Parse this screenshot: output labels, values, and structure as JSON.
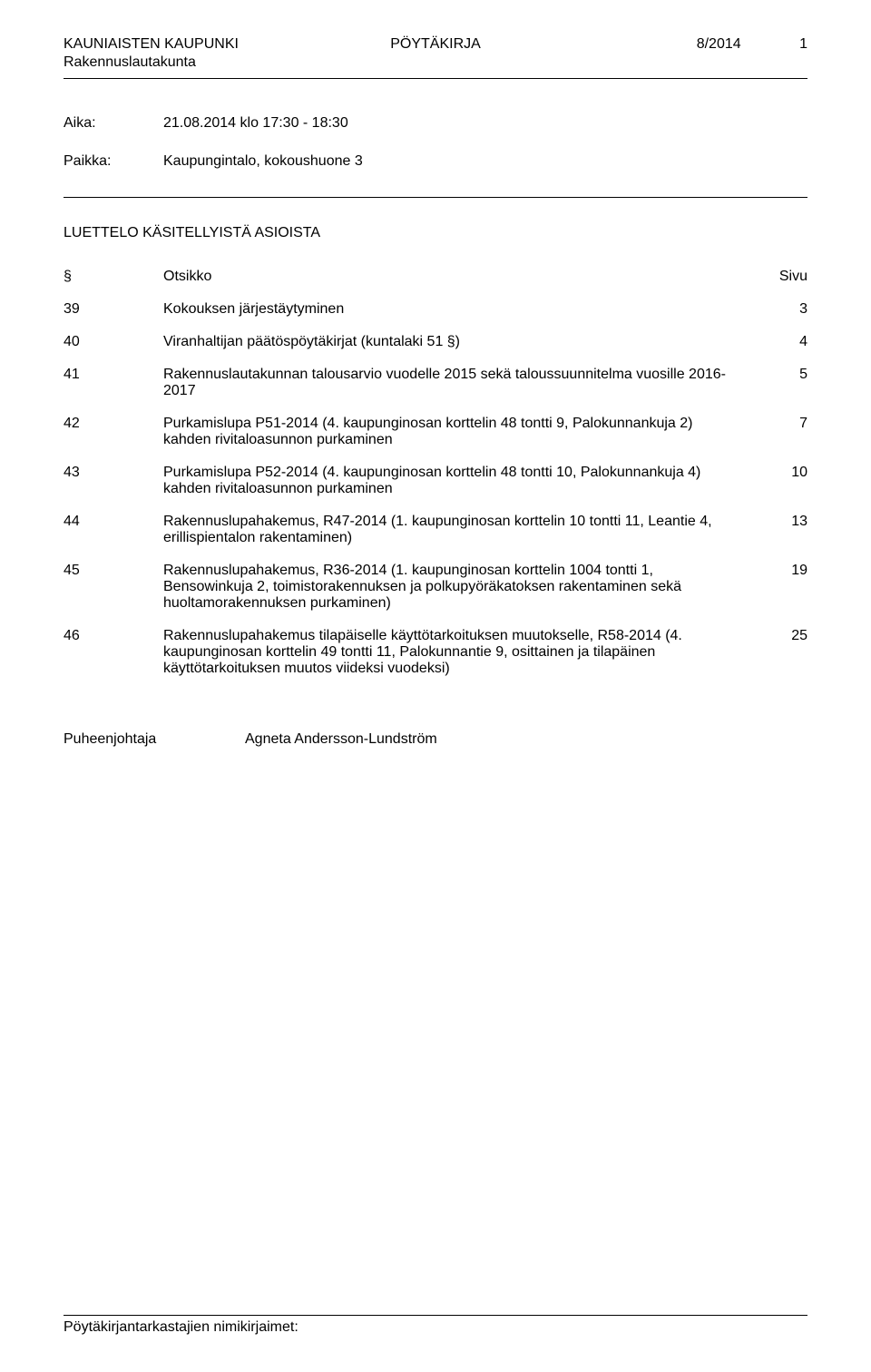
{
  "header": {
    "org": "KAUNIAISTEN KAUPUNKI",
    "subtitle": "Rakennuslautakunta",
    "docType": "PÖYTÄKIRJA",
    "issue": "8/2014",
    "pageNum": "1"
  },
  "meta": {
    "aika_label": "Aika:",
    "aika_value": "21.08.2014 klo 17:30 - 18:30",
    "paikka_label": "Paikka:",
    "paikka_value": "Kaupungintalo, kokoushuone 3"
  },
  "listTitle": "LUETTELO KÄSITELLYISTÄ ASIOISTA",
  "tableHeader": {
    "section": "§",
    "title": "Otsikko",
    "page": "Sivu"
  },
  "agenda": [
    {
      "num": "39",
      "title": "Kokouksen järjestäytyminen",
      "page": "3"
    },
    {
      "num": "40",
      "title": "Viranhaltijan päätöspöytäkirjat (kuntalaki 51 §)",
      "page": "4"
    },
    {
      "num": "41",
      "title": "Rakennuslautakunnan talousarvio vuodelle 2015 sekä taloussuunnitelma vuosille 2016-2017",
      "page": "5"
    },
    {
      "num": "42",
      "title": "Purkamislupa P51-2014 (4. kaupunginosan korttelin 48 tontti 9, Palokunnankuja 2) kahden rivitaloasunnon purkaminen",
      "page": "7"
    },
    {
      "num": "43",
      "title": "Purkamislupa P52-2014 (4. kaupunginosan korttelin 48 tontti 10, Palokunnankuja 4) kahden rivitaloasunnon purkaminen",
      "page": "10"
    },
    {
      "num": "44",
      "title": "Rakennuslupahakemus, R47-2014 (1. kaupunginosan korttelin 10 tontti 11, Leantie 4, erillispientalon rakentaminen)",
      "page": "13"
    },
    {
      "num": "45",
      "title": "Rakennuslupahakemus, R36-2014 (1. kaupunginosan korttelin 1004 tontti 1, Bensowinkuja 2, toimistorakennuksen ja polkupyöräkatoksen rakentaminen sekä huoltamorakennuksen purkaminen)",
      "page": "19"
    },
    {
      "num": "46",
      "title": "Rakennuslupahakemus tilapäiselle käyttötarkoituksen muutokselle, R58-2014 (4. kaupunginosan korttelin 49 tontti 11, Palokunnantie 9, osittainen ja tilapäinen käyttötarkoituksen muutos viideksi vuodeksi)",
      "page": "25"
    }
  ],
  "chair": {
    "label": "Puheenjohtaja",
    "name": "Agneta Andersson-Lundström"
  },
  "footer": {
    "text": "Pöytäkirjantarkastajien nimikirjaimet:"
  }
}
